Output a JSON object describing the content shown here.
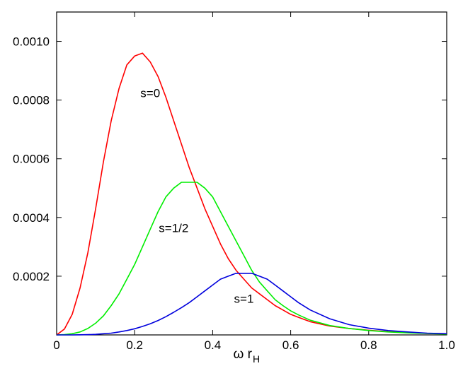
{
  "chart_data": {
    "type": "line",
    "title": "",
    "xlabel": "ω r",
    "xlabel_subscript": "H",
    "ylabel": "",
    "xlim": [
      0,
      1.0
    ],
    "ylim": [
      0,
      0.0011
    ],
    "x_ticks": [
      0,
      0.2,
      0.4,
      0.6,
      0.8,
      1.0
    ],
    "x_tick_labels": [
      "0",
      "0.2",
      "0.4",
      "0.6",
      "0.8",
      "1.0"
    ],
    "y_ticks": [
      0.0002,
      0.0004,
      0.0006,
      0.0008,
      0.001
    ],
    "y_tick_labels": [
      "0.0002",
      "0.0004",
      "0.0006",
      "0.0008",
      "0.0010"
    ],
    "grid": false,
    "legend": "none",
    "series": [
      {
        "name": "s=0",
        "color": "#ff0000",
        "label_pos": [
          0.24,
          0.00081
        ],
        "x": [
          0,
          0.02,
          0.04,
          0.06,
          0.08,
          0.1,
          0.12,
          0.14,
          0.16,
          0.18,
          0.2,
          0.22,
          0.24,
          0.26,
          0.28,
          0.3,
          0.32,
          0.34,
          0.36,
          0.38,
          0.4,
          0.42,
          0.44,
          0.46,
          0.48,
          0.5,
          0.52,
          0.54,
          0.56,
          0.58,
          0.6,
          0.62,
          0.65,
          0.7,
          0.75,
          0.8,
          0.85,
          0.9,
          0.95,
          1.0
        ],
        "y": [
          0,
          2e-05,
          7e-05,
          0.00016,
          0.00028,
          0.00043,
          0.00059,
          0.00073,
          0.00084,
          0.00092,
          0.00095,
          0.00096,
          0.00093,
          0.00088,
          0.00081,
          0.00073,
          0.00065,
          0.00057,
          0.0005,
          0.00043,
          0.00037,
          0.00031,
          0.00026,
          0.00022,
          0.00019,
          0.00016,
          0.00014,
          0.00012,
          0.0001,
          8.5e-05,
          7e-05,
          6e-05,
          4.5e-05,
          3e-05,
          2.2e-05,
          1.6e-05,
          1.1e-05,
          8e-06,
          5e-06,
          4e-06
        ]
      },
      {
        "name": "s=1/2",
        "color": "#00ee00",
        "label_pos": [
          0.3,
          0.00035
        ],
        "x": [
          0,
          0.02,
          0.04,
          0.06,
          0.08,
          0.1,
          0.12,
          0.14,
          0.16,
          0.18,
          0.2,
          0.22,
          0.24,
          0.26,
          0.28,
          0.3,
          0.32,
          0.34,
          0.36,
          0.38,
          0.4,
          0.42,
          0.44,
          0.46,
          0.48,
          0.5,
          0.52,
          0.54,
          0.56,
          0.58,
          0.6,
          0.62,
          0.65,
          0.7,
          0.75,
          0.8,
          0.85,
          0.9,
          0.95,
          1.0
        ],
        "y": [
          0,
          1e-06,
          4e-06,
          1e-05,
          2.2e-05,
          4e-05,
          6.5e-05,
          0.0001,
          0.00014,
          0.00019,
          0.00024,
          0.0003,
          0.00036,
          0.00042,
          0.00047,
          0.0005,
          0.00052,
          0.00052,
          0.00052,
          0.0005,
          0.00047,
          0.00042,
          0.00037,
          0.00032,
          0.00027,
          0.00022,
          0.00018,
          0.00015,
          0.00012,
          0.0001,
          8.2e-05,
          6.8e-05,
          5e-05,
          3.2e-05,
          2.2e-05,
          1.5e-05,
          1e-05,
          7e-06,
          5e-06,
          3e-06
        ]
      },
      {
        "name": "s=1",
        "color": "#0000dd",
        "label_pos": [
          0.48,
          0.00011
        ],
        "x": [
          0,
          0.02,
          0.04,
          0.06,
          0.08,
          0.1,
          0.12,
          0.14,
          0.16,
          0.18,
          0.2,
          0.22,
          0.24,
          0.26,
          0.28,
          0.3,
          0.32,
          0.34,
          0.36,
          0.38,
          0.4,
          0.42,
          0.44,
          0.46,
          0.48,
          0.5,
          0.52,
          0.54,
          0.56,
          0.58,
          0.6,
          0.62,
          0.65,
          0.7,
          0.75,
          0.8,
          0.85,
          0.9,
          0.95,
          1.0
        ],
        "y": [
          0,
          0,
          0,
          5e-07,
          1e-06,
          2e-06,
          4e-06,
          6e-06,
          1e-05,
          1.5e-05,
          2.1e-05,
          2.9e-05,
          3.8e-05,
          4.9e-05,
          6.2e-05,
          7.7e-05,
          9.3e-05,
          0.00011,
          0.00013,
          0.00015,
          0.00017,
          0.00019,
          0.0002,
          0.00021,
          0.00021,
          0.00021,
          0.0002,
          0.00019,
          0.00017,
          0.00015,
          0.00013,
          0.00011,
          8.5e-05,
          5.5e-05,
          3.5e-05,
          2.3e-05,
          1.5e-05,
          1e-05,
          6e-06,
          4e-06
        ]
      }
    ]
  }
}
